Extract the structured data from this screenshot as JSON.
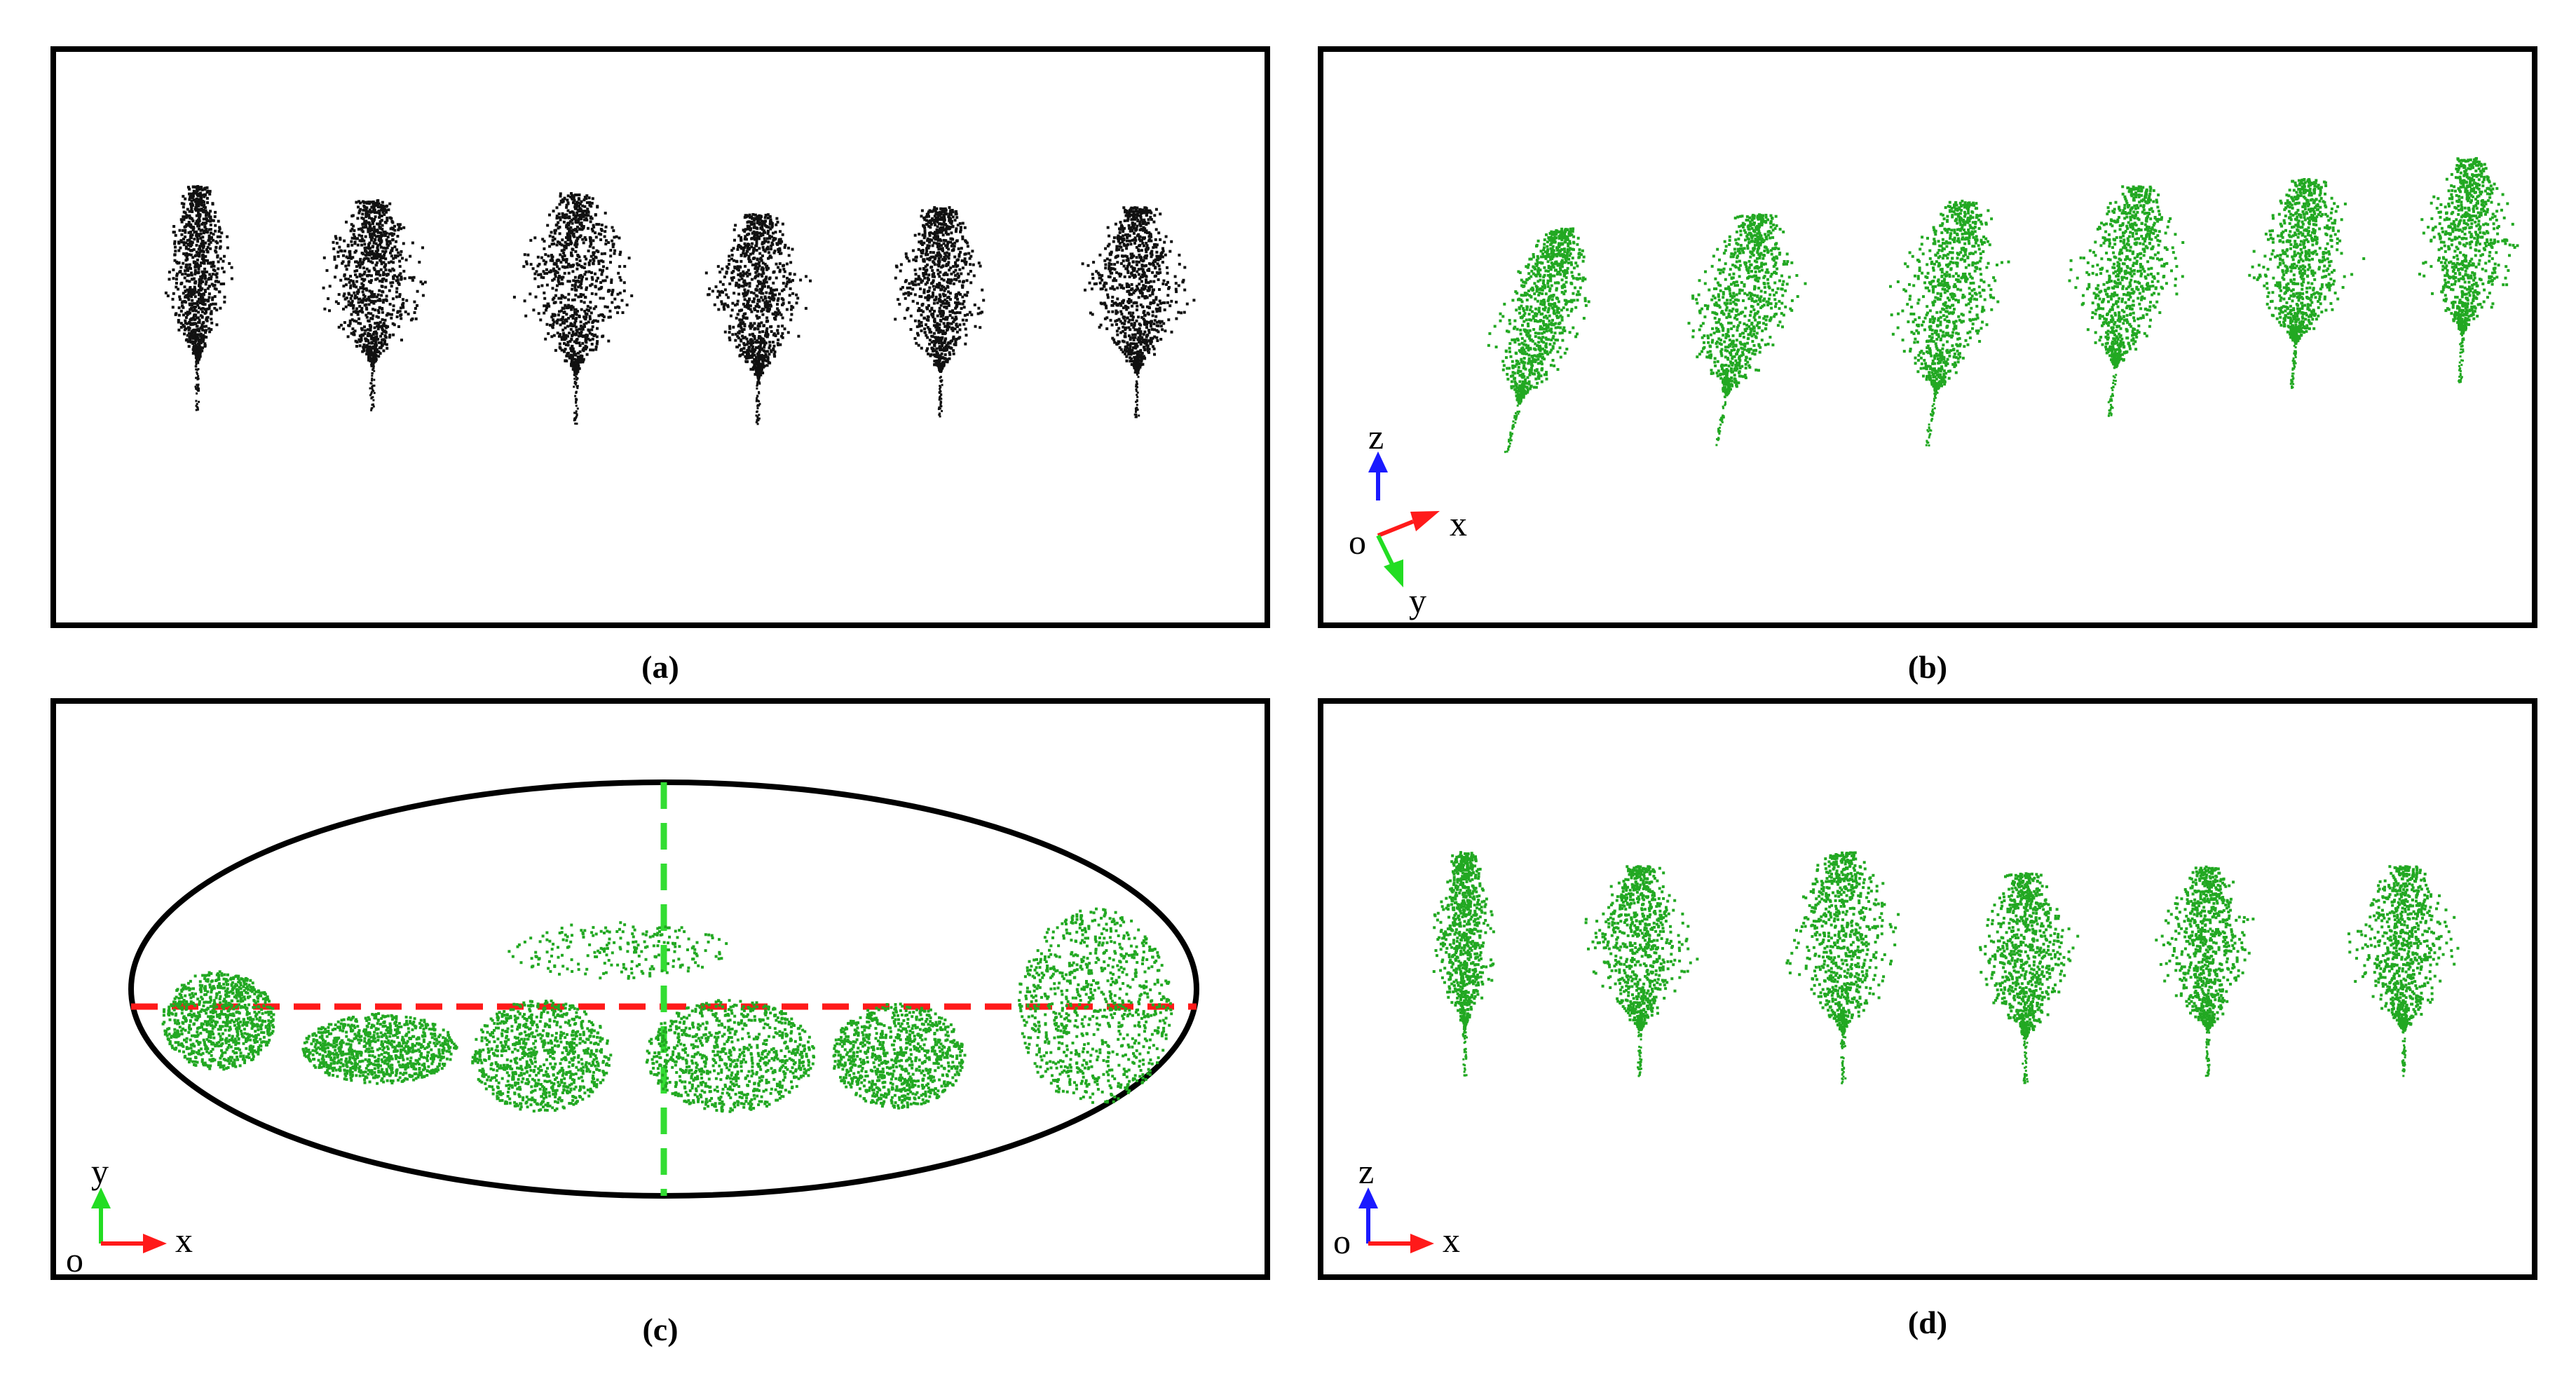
{
  "captions": {
    "a": "(a)",
    "b": "(b)",
    "c": "(c)",
    "d": "(d)"
  },
  "axis_labels": {
    "x": "x",
    "y": "y",
    "z": "z",
    "origin": "o"
  },
  "colors": {
    "frame": "#000000",
    "points_black": "#111111",
    "points_green": "#22a822",
    "axis_x": "#ff1a1a",
    "axis_y": "#22dd22",
    "axis_z": "#1a1aff",
    "dashed_major": "#ff1a1a",
    "dashed_minor": "#33dd33"
  },
  "panels": {
    "a": {
      "view": "point-cloud-front-black",
      "trees": 6
    },
    "b": {
      "view": "point-cloud-oblique-green",
      "trees": 6
    },
    "c": {
      "view": "point-cloud-top-green-with-ellipse",
      "trees": 6
    },
    "d": {
      "view": "point-cloud-front-green",
      "trees": 6
    }
  }
}
